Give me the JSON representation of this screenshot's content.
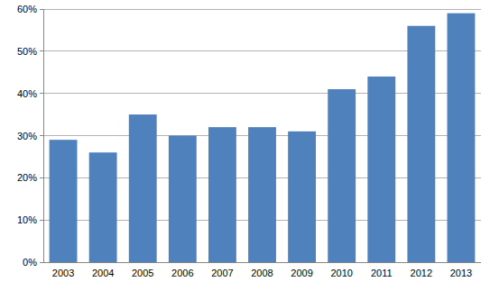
{
  "chart_data": {
    "type": "bar",
    "categories": [
      "2003",
      "2004",
      "2005",
      "2006",
      "2007",
      "2008",
      "2009",
      "2010",
      "2011",
      "2012",
      "2013"
    ],
    "values": [
      29,
      26,
      35,
      30,
      32,
      32,
      31,
      41,
      44,
      56,
      59
    ],
    "color": "#4f81bd",
    "ylim": [
      0,
      60
    ],
    "yticks": [
      {
        "value": 0,
        "label": "0%"
      },
      {
        "value": 10,
        "label": "10%"
      },
      {
        "value": 20,
        "label": "20%"
      },
      {
        "value": 30,
        "label": "30%"
      },
      {
        "value": 40,
        "label": "40%"
      },
      {
        "value": 50,
        "label": "50%"
      },
      {
        "value": 60,
        "label": "60%"
      }
    ],
    "grid": true
  }
}
